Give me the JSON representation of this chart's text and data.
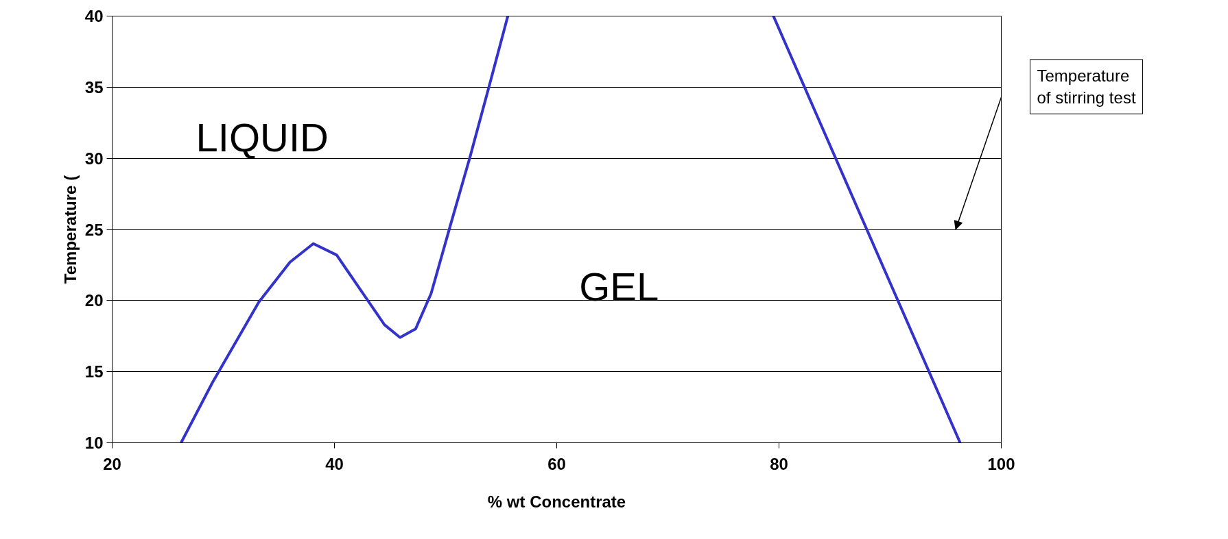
{
  "chart_data": {
    "type": "line",
    "xlabel": "% wt Concentrate",
    "ylabel": "Temperature (",
    "x": [
      26.2,
      29,
      33.2,
      36,
      38.1,
      40.2,
      42.3,
      44.5,
      45.9,
      47.3,
      48.7,
      50.4,
      52.2,
      54,
      55.6,
      null,
      79.5,
      96.3
    ],
    "series": [
      {
        "color": "#3333cc",
        "values": [
          10,
          14.2,
          19.9,
          22.7,
          24,
          23.2,
          20.8,
          18.3,
          17.4,
          18,
          20.5,
          25.2,
          30.1,
          35.3,
          40,
          null,
          40,
          10
        ]
      }
    ],
    "xlim": [
      20,
      100
    ],
    "xticks": [
      20,
      40,
      60,
      80,
      100
    ],
    "ylim": [
      10,
      40
    ],
    "yticks": [
      10,
      15,
      20,
      25,
      30,
      35,
      40
    ],
    "grid": "y",
    "marker": "none",
    "line_style": "solid",
    "annotations": [
      "LIQUID",
      "GEL",
      "Temperature of stirring test"
    ]
  }
}
